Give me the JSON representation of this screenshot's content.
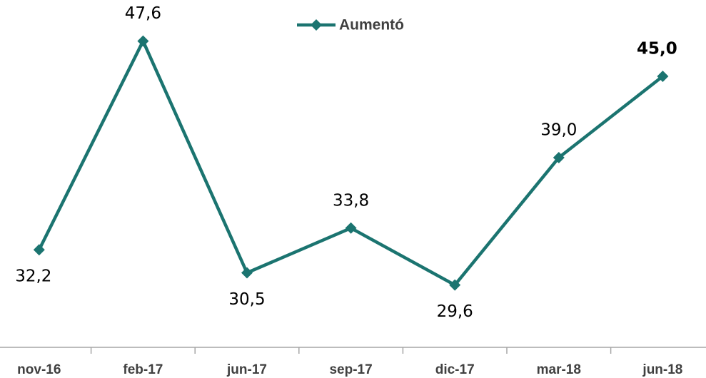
{
  "chart_data": {
    "type": "line",
    "categories": [
      "nov-16",
      "feb-17",
      "jun-17",
      "sep-17",
      "dic-17",
      "mar-18",
      "jun-18"
    ],
    "series": [
      {
        "name": "Aumentó",
        "color": "#1b7470",
        "values": [
          32.2,
          47.6,
          30.5,
          33.8,
          29.6,
          39.0,
          45.0
        ],
        "value_labels": [
          "32,2",
          "47,6",
          "30,5",
          "33,8",
          "29,6",
          "39,0",
          "45,0"
        ]
      }
    ],
    "ylim": [
      25,
      50
    ],
    "legend": "top"
  }
}
